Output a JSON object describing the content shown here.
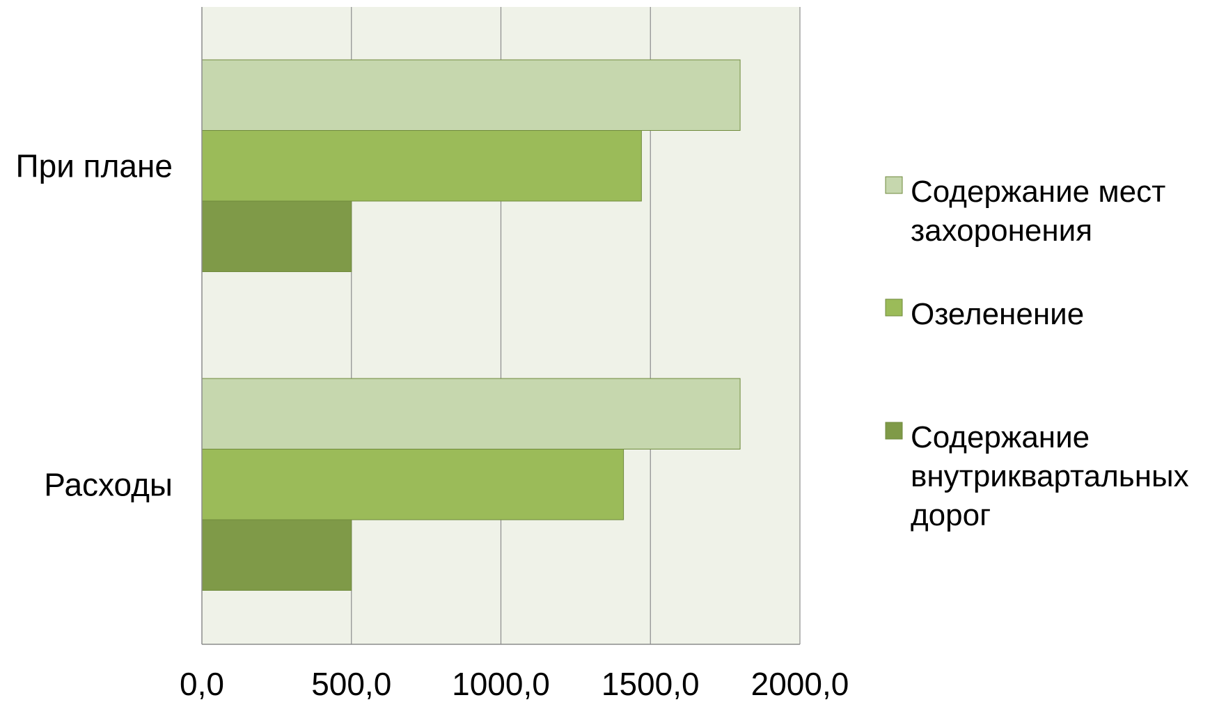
{
  "chart_data": {
    "type": "bar",
    "orientation": "horizontal",
    "title": "",
    "xlabel": "",
    "ylabel": "",
    "xlim": [
      0,
      2000
    ],
    "x_ticks": [
      "0,0",
      "500,0",
      "1000,0",
      "1500,0",
      "2000,0"
    ],
    "categories": [
      "При плане",
      "Расходы"
    ],
    "series": [
      {
        "name": "Содержание мест захоронения",
        "legend_lines": [
          "Содержание мест",
          "захоронения"
        ],
        "color": "#c6d7ae",
        "values": [
          1800,
          1800
        ]
      },
      {
        "name": "Озеленение",
        "legend_lines": [
          "Озеленение"
        ],
        "color": "#9bbb59",
        "values": [
          1470,
          1410
        ]
      },
      {
        "name": "Содержание внутриквартальных дорог",
        "legend_lines": [
          "Содержание",
          "внутриквартальных",
          "дорог"
        ],
        "color": "#7f9a48",
        "values": [
          500,
          500
        ]
      }
    ],
    "grid": true,
    "plot_background": "#eff2e8",
    "gridline_color": "#8c8c8c",
    "bar_edge_color": "#6f8a3c",
    "legend_position": "right"
  }
}
